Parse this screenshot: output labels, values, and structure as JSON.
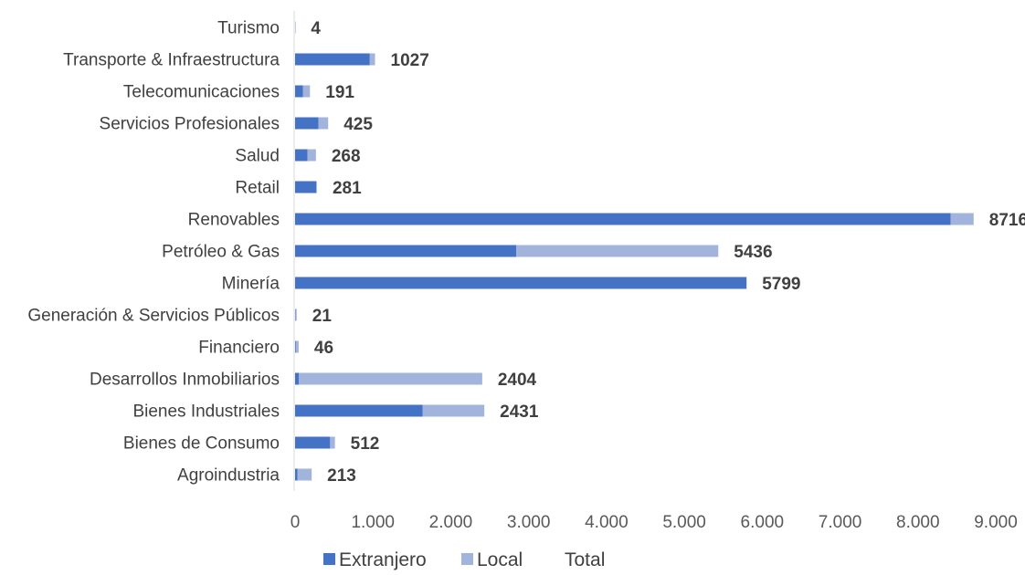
{
  "chart_data": {
    "type": "bar",
    "orientation": "horizontal",
    "stacked": true,
    "categories": [
      "Agroindustria",
      "Bienes de Consumo",
      "Bienes Industriales",
      "Desarrollos Inmobiliarios",
      "Financiero",
      "Generación & Servicios Públicos",
      "Minería",
      "Petróleo & Gas",
      "Renovables",
      "Retail",
      "Salud",
      "Servicios Profesionales",
      "Telecomunicaciones",
      "Transporte & Infraestructura",
      "Turismo"
    ],
    "series": [
      {
        "name": "Extranjero",
        "values": [
          30,
          450,
          1640,
          50,
          10,
          5,
          5799,
          2840,
          8420,
          270,
          160,
          300,
          100,
          960,
          4
        ]
      },
      {
        "name": "Local",
        "values": [
          183,
          62,
          791,
          2354,
          36,
          16,
          0,
          2596,
          296,
          11,
          108,
          125,
          91,
          67,
          0
        ]
      }
    ],
    "totals_series_name": "Total",
    "totals": [
      213,
      512,
      2431,
      2404,
      46,
      21,
      5799,
      5436,
      8716,
      281,
      268,
      425,
      191,
      1027,
      4
    ],
    "xlim": [
      0,
      9000
    ],
    "x_ticks": [
      0,
      1000,
      2000,
      3000,
      4000,
      5000,
      6000,
      7000,
      8000,
      9000
    ],
    "x_tick_labels": [
      "0",
      "1.000",
      "2.000",
      "3.000",
      "4.000",
      "5.000",
      "6.000",
      "7.000",
      "8.000",
      "9.000"
    ],
    "title": "",
    "xlabel": "",
    "ylabel": "",
    "grid": false,
    "legend_position": "bottom",
    "colors": {
      "Extranjero": "#4472C4",
      "Local": "#A2B4DC",
      "axis": "#D9D9D9"
    }
  }
}
